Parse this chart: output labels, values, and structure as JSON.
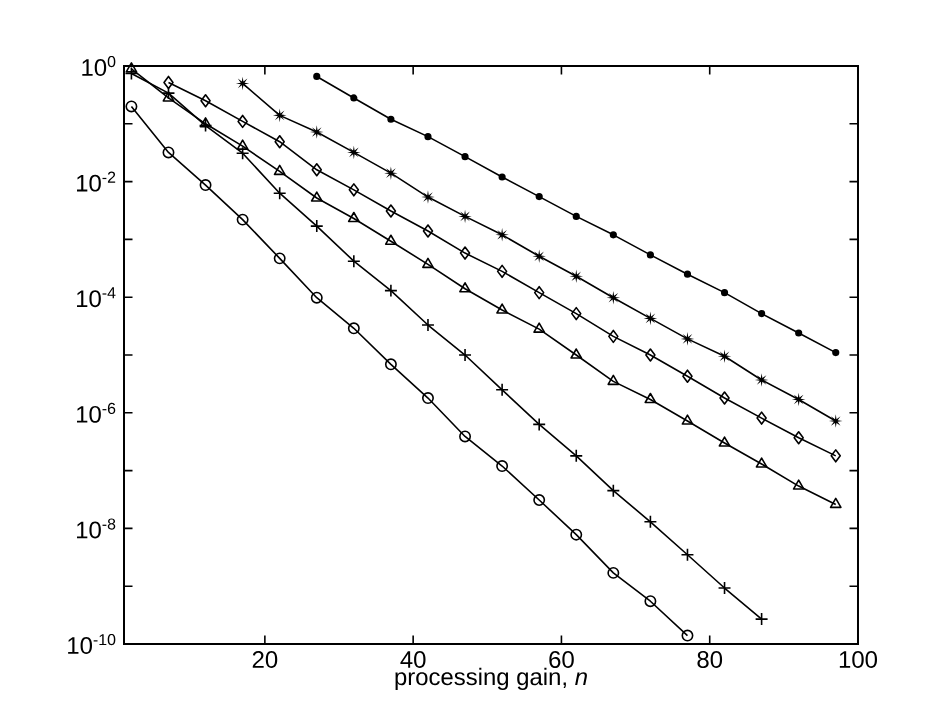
{
  "chart_data": {
    "type": "line",
    "xlabel": "processing gain, *n*",
    "log": "y",
    "grid": false,
    "line_style": "solid",
    "xlim": [
      1,
      100
    ],
    "xticks": [
      20,
      40,
      60,
      80,
      100
    ],
    "ylim": [
      1e-10,
      1
    ],
    "yticks": [
      {
        "value": 1,
        "label": "10$^{0}$"
      },
      {
        "value": 0.1,
        "label": null
      },
      {
        "value": 0.01,
        "label": "10$^{-2}$"
      },
      {
        "value": 0.001,
        "label": null
      },
      {
        "value": 0.0001,
        "label": "10$^{-4}$"
      },
      {
        "value": 1e-05,
        "label": null
      },
      {
        "value": 1e-06,
        "label": "10$^{-6}$"
      },
      {
        "value": 1e-07,
        "label": null
      },
      {
        "value": 1e-08,
        "label": "10$^{-8}$"
      },
      {
        "value": 1e-09,
        "label": null
      },
      {
        "value": 1e-10,
        "label": "10$^{-10}$"
      }
    ],
    "series": [
      {
        "color": "#000000",
        "marker": "circle",
        "x": [
          2,
          7,
          12,
          17,
          22,
          27,
          32,
          37,
          42,
          47,
          52,
          57,
          62,
          67,
          72,
          77
        ],
        "values": [
          0.2,
          0.032,
          0.0087,
          0.0022,
          0.00047,
          9.8e-05,
          2.9e-05,
          6.9e-06,
          1.8e-06,
          3.9e-07,
          1.2e-07,
          3.1e-08,
          7.8e-09,
          1.7e-09,
          5.5e-10,
          1.4e-10
        ]
      },
      {
        "color": "#000000",
        "marker": "cross",
        "x": [
          2,
          7,
          12,
          17,
          22,
          27,
          32,
          37,
          42,
          47,
          52,
          57,
          62,
          67,
          72,
          77,
          82,
          87
        ],
        "values": [
          0.74,
          0.34,
          0.093,
          0.031,
          0.0063,
          0.0017,
          0.00042,
          0.00013,
          3.3e-05,
          1e-05,
          2.5e-06,
          6.3e-07,
          1.8e-07,
          4.5e-08,
          1.3e-08,
          3.5e-09,
          9.3e-10,
          2.7e-10
        ]
      },
      {
        "color": "#000000",
        "marker": "triangle",
        "x": [
          2,
          7,
          12,
          17,
          22,
          27,
          32,
          37,
          42,
          47,
          52,
          57,
          62,
          67,
          72,
          77,
          82,
          87,
          92,
          97
        ],
        "values": [
          0.89,
          0.28,
          0.1,
          0.041,
          0.015,
          0.0052,
          0.0023,
          0.00093,
          0.00037,
          0.00014,
          6e-05,
          2.8e-05,
          1e-05,
          3.5e-06,
          1.7e-06,
          7.2e-07,
          3e-07,
          1.3e-07,
          5.4e-08,
          2.6e-08
        ]
      },
      {
        "color": "#000000",
        "marker": "diamond",
        "x": [
          7,
          12,
          17,
          22,
          27,
          32,
          37,
          42,
          47,
          52,
          57,
          62,
          67,
          72,
          77,
          82,
          87,
          92,
          97
        ],
        "values": [
          0.52,
          0.25,
          0.11,
          0.049,
          0.016,
          0.0072,
          0.0031,
          0.0014,
          0.00058,
          0.00028,
          0.00012,
          5.2e-05,
          2.1e-05,
          1e-05,
          4.3e-06,
          1.8e-06,
          8.1e-07,
          3.7e-07,
          1.8e-07
        ]
      },
      {
        "color": "#000000",
        "marker": "star",
        "x": [
          17,
          22,
          27,
          32,
          37,
          42,
          47,
          52,
          57,
          62,
          67,
          72,
          77,
          82,
          87,
          92,
          97
        ],
        "values": [
          0.5,
          0.14,
          0.072,
          0.032,
          0.014,
          0.0054,
          0.0025,
          0.0012,
          0.00051,
          0.00023,
          9.8e-05,
          4.3e-05,
          1.9e-05,
          9.5e-06,
          3.7e-06,
          1.7e-06,
          7.2e-07
        ]
      },
      {
        "color": "#000000",
        "marker": "dot",
        "x": [
          27,
          32,
          37,
          42,
          47,
          52,
          57,
          62,
          67,
          72,
          77,
          82,
          87,
          92,
          97
        ],
        "values": [
          0.66,
          0.28,
          0.12,
          0.06,
          0.027,
          0.012,
          0.0055,
          0.0025,
          0.0012,
          0.00054,
          0.00025,
          0.00012,
          5.2e-05,
          2.4e-05,
          1.1e-05
        ]
      }
    ]
  }
}
